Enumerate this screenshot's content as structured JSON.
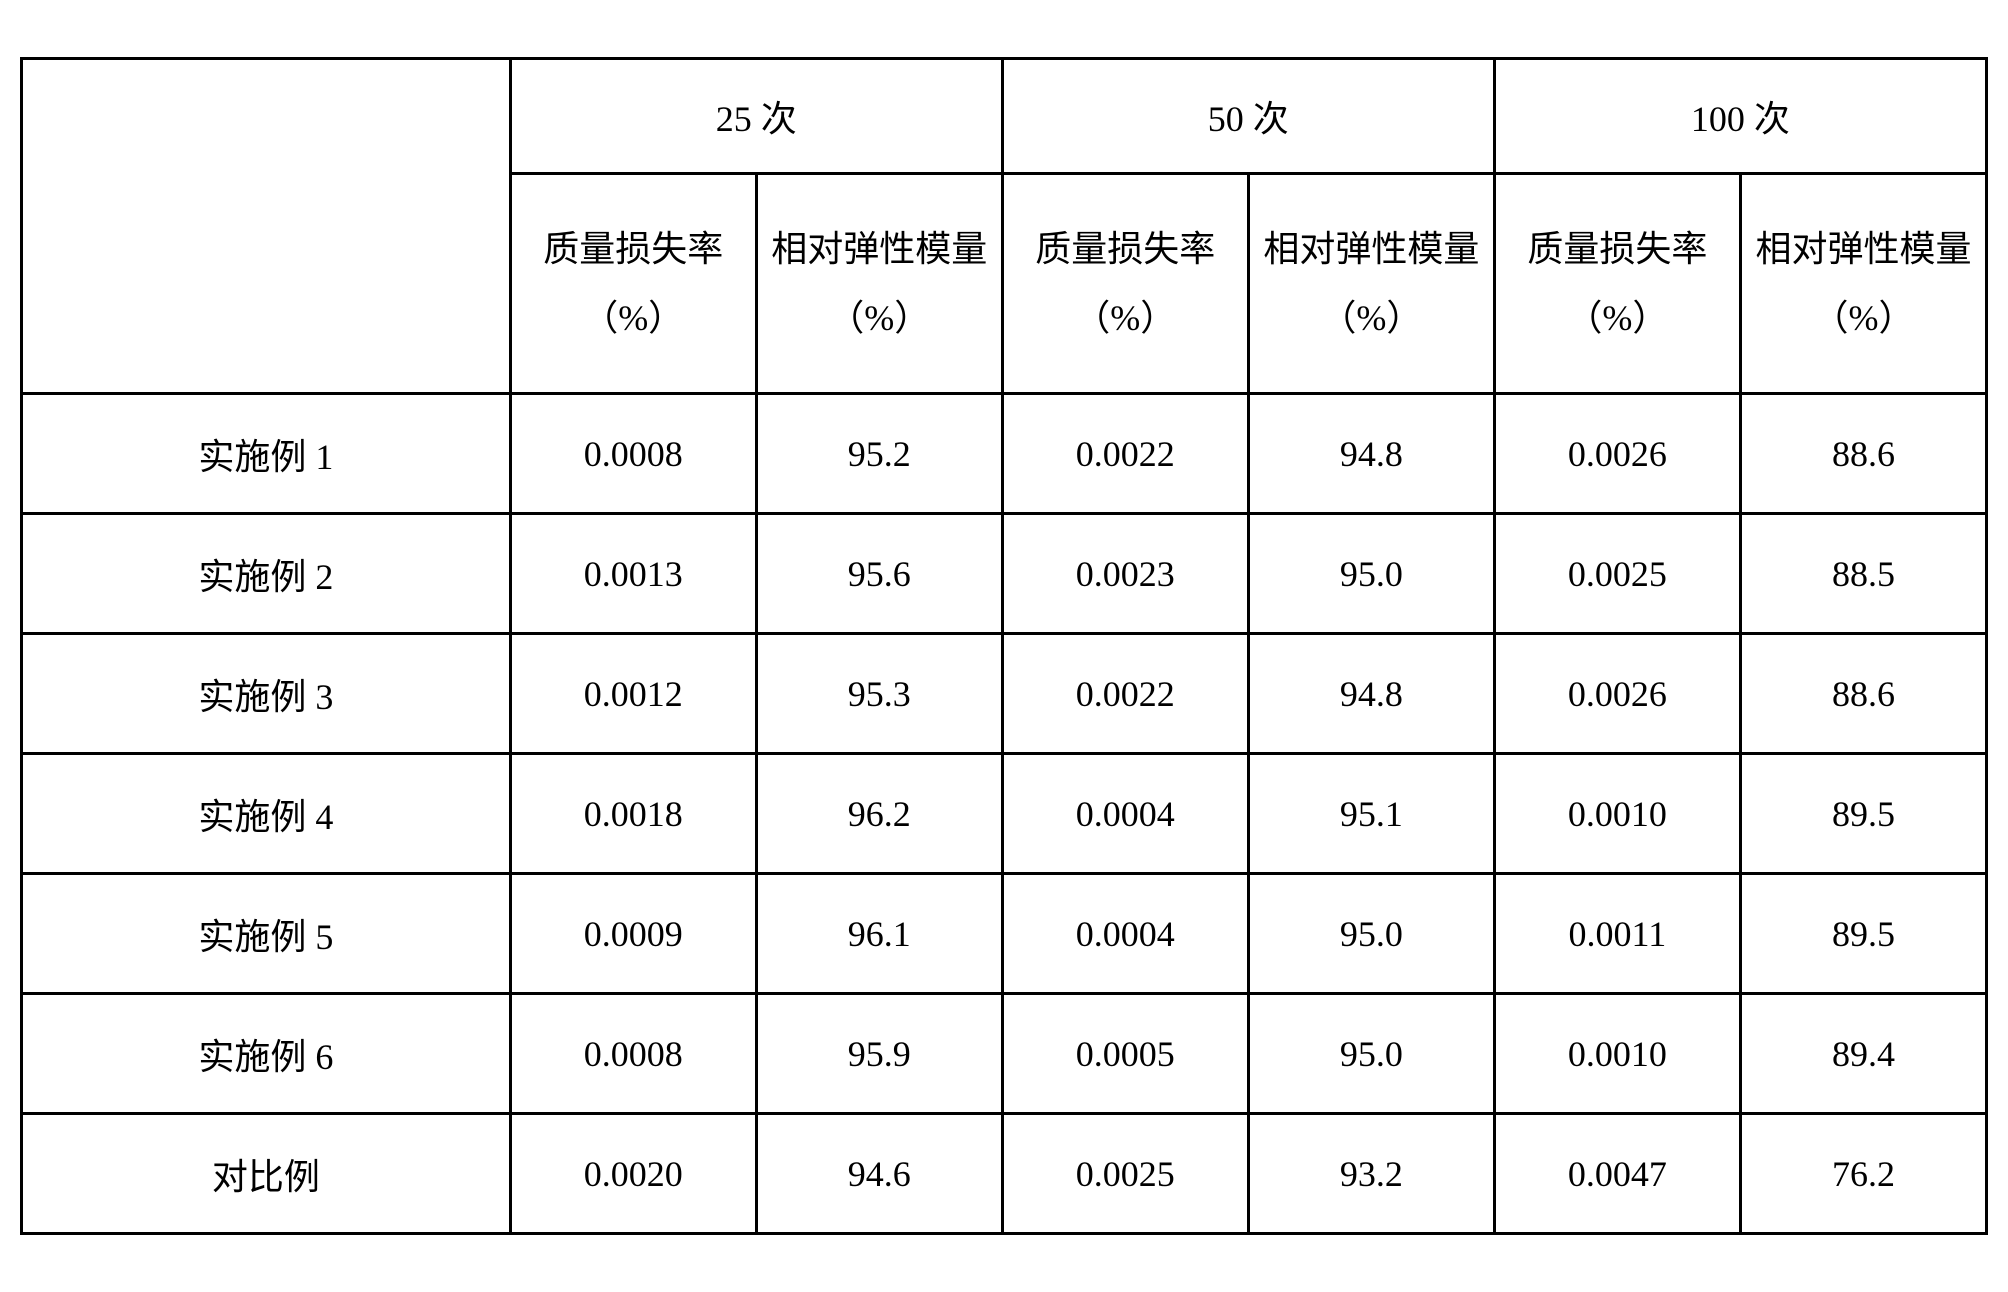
{
  "table": {
    "type": "table",
    "border_color": "#000000",
    "border_width": 3,
    "background_color": "#ffffff",
    "text_color": "#000000",
    "font_size": 36,
    "font_family": "SimSun",
    "header_groups": [
      "25 次",
      "50 次",
      "100 次"
    ],
    "sub_headers": {
      "mass_loss": "质量损失率（%）",
      "elastic_modulus": "相对弹性模量（%）"
    },
    "row_labels": [
      "实施例 1",
      "实施例 2",
      "实施例 3",
      "实施例 4",
      "实施例 5",
      "实施例 6",
      "对比例"
    ],
    "rows": [
      [
        "0.0008",
        "95.2",
        "0.0022",
        "94.8",
        "0.0026",
        "88.6"
      ],
      [
        "0.0013",
        "95.6",
        "0.0023",
        "95.0",
        "0.0025",
        "88.5"
      ],
      [
        "0.0012",
        "95.3",
        "0.0022",
        "94.8",
        "0.0026",
        "88.6"
      ],
      [
        "0.0018",
        "96.2",
        "0.0004",
        "95.1",
        "0.0010",
        "89.5"
      ],
      [
        "0.0009",
        "96.1",
        "0.0004",
        "95.0",
        "0.0011",
        "89.5"
      ],
      [
        "0.0008",
        "95.9",
        "0.0005",
        "95.0",
        "0.0010",
        "89.4"
      ],
      [
        "0.0020",
        "94.6",
        "0.0025",
        "93.2",
        "0.0047",
        "76.2"
      ]
    ],
    "column_widths": [
      "14.2%",
      "14.3%",
      "14.3%",
      "14.3%",
      "14.3%",
      "14.3%",
      "14.3%"
    ],
    "cell_alignment": "center"
  }
}
